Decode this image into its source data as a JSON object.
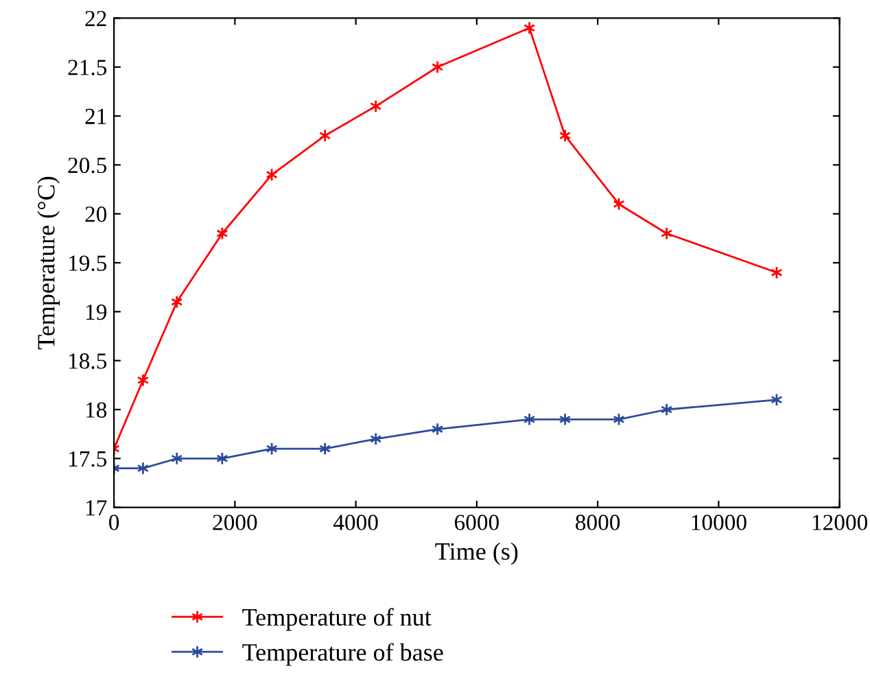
{
  "chart_data": {
    "type": "line",
    "xlabel": "Time (s)",
    "ylabel": "Temperature (°C)",
    "xlim": [
      0,
      12000
    ],
    "xticks": [
      0,
      2000,
      4000,
      6000,
      8000,
      10000,
      12000
    ],
    "ylim": [
      17,
      22
    ],
    "yticks": [
      17,
      17.5,
      18,
      18.5,
      19,
      19.5,
      20,
      20.5,
      21,
      21.5,
      22
    ],
    "x": [
      0,
      480,
      1040,
      1790,
      2610,
      3490,
      4330,
      5350,
      6870,
      7460,
      8350,
      9140,
      10960
    ],
    "series": [
      {
        "name": "Temperature of nut",
        "color": "#ff0000",
        "values": [
          17.6,
          18.3,
          19.1,
          19.8,
          20.4,
          20.8,
          21.1,
          21.5,
          21.9,
          20.8,
          20.1,
          19.8,
          19.4
        ]
      },
      {
        "name": "Temperature of base",
        "color": "#2b4b9b",
        "values": [
          17.4,
          17.4,
          17.5,
          17.5,
          17.6,
          17.6,
          17.7,
          17.8,
          17.9,
          17.9,
          17.9,
          18.0,
          18.1
        ]
      }
    ],
    "marker": "cross",
    "line_style": "solid",
    "grid": false,
    "legend": "bottom left"
  }
}
